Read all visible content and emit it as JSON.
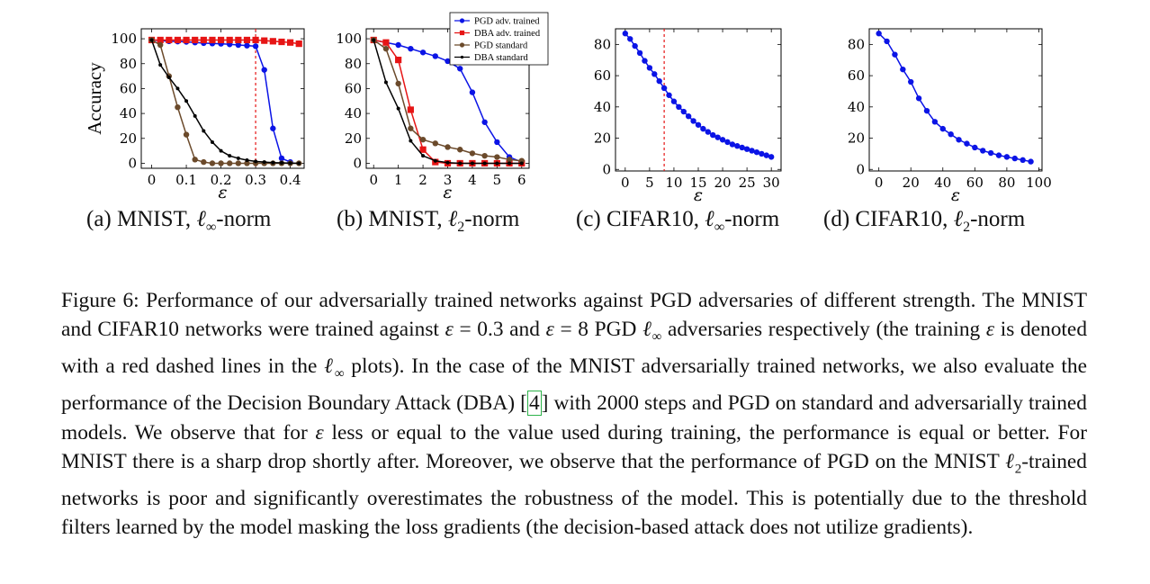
{
  "colors": {
    "pgd_adv": "#0b14e6",
    "dba_adv": "#e61515",
    "pgd_std": "#6b4a2b",
    "dba_std": "#000000",
    "train_line": "#e61515",
    "ref_box": "#2db34a"
  },
  "chart_data": [
    {
      "type": "line",
      "subcaption": {
        "prefix": "(a) MNIST, ",
        "math": "ℓ",
        "sub": "∞",
        "suffix": "-norm"
      },
      "ylabel": "Accuracy",
      "xlabel": "ε",
      "xlim": [
        -0.03,
        0.44
      ],
      "ylim": [
        -4,
        108
      ],
      "xticks": [
        0,
        0.1,
        0.2,
        0.3,
        0.4
      ],
      "xtick_labels": [
        "0",
        "0.1",
        "0.2",
        "0.3",
        "0.4"
      ],
      "yticks": [
        0,
        20,
        40,
        60,
        80,
        100
      ],
      "ytick_labels": [
        "0",
        "20",
        "40",
        "60",
        "80",
        "100"
      ],
      "train_eps": 0.3,
      "series": [
        {
          "key": "pgd_adv",
          "marker": "circle",
          "x": [
            0,
            0.025,
            0.05,
            0.075,
            0.1,
            0.125,
            0.15,
            0.175,
            0.2,
            0.225,
            0.25,
            0.275,
            0.3,
            0.325,
            0.35,
            0.375,
            0.4
          ],
          "y": [
            99,
            98.5,
            98,
            97.8,
            97.5,
            97,
            96.5,
            96.2,
            96,
            95.5,
            95,
            94.5,
            94,
            75,
            28,
            4,
            1
          ]
        },
        {
          "key": "dba_adv",
          "marker": "square",
          "x": [
            0,
            0.025,
            0.05,
            0.075,
            0.1,
            0.125,
            0.15,
            0.175,
            0.2,
            0.225,
            0.25,
            0.275,
            0.3,
            0.325,
            0.35,
            0.375,
            0.4,
            0.425
          ],
          "y": [
            99,
            99,
            99,
            99,
            99,
            99,
            99,
            99,
            99,
            99,
            99,
            99,
            99,
            98.5,
            98,
            97.5,
            97,
            96
          ]
        },
        {
          "key": "pgd_std",
          "marker": "circle",
          "x": [
            0,
            0.025,
            0.05,
            0.075,
            0.1,
            0.125,
            0.15,
            0.175,
            0.2,
            0.225,
            0.25,
            0.275,
            0.3,
            0.325,
            0.35,
            0.375,
            0.4,
            0.425
          ],
          "y": [
            99,
            95,
            70,
            45,
            23,
            3,
            1,
            0,
            0,
            0,
            0,
            0,
            0,
            0,
            0,
            0,
            0,
            0
          ]
        },
        {
          "key": "dba_std",
          "marker": "dot",
          "x": [
            0,
            0.025,
            0.05,
            0.075,
            0.1,
            0.125,
            0.15,
            0.175,
            0.2,
            0.225,
            0.25,
            0.275,
            0.3,
            0.325,
            0.35,
            0.375,
            0.4,
            0.425
          ],
          "y": [
            99,
            79,
            69,
            60,
            50,
            38,
            26,
            17,
            10,
            6,
            4,
            2.5,
            1.5,
            1,
            0.5,
            0.3,
            0.2,
            0
          ]
        }
      ]
    },
    {
      "type": "line",
      "subcaption": {
        "prefix": "(b) MNIST, ",
        "math": "ℓ",
        "sub": "2",
        "suffix": "-norm"
      },
      "xlabel": "ε",
      "xlim": [
        -0.3,
        6.3
      ],
      "ylim": [
        -4,
        108
      ],
      "xticks": [
        0,
        1,
        2,
        3,
        4,
        5,
        6
      ],
      "xtick_labels": [
        "0",
        "1",
        "2",
        "3",
        "4",
        "5",
        "6"
      ],
      "yticks": [
        0,
        20,
        40,
        60,
        80,
        100
      ],
      "ytick_labels": [
        "0",
        "20",
        "40",
        "60",
        "80",
        "100"
      ],
      "legend": {
        "position": "top-right",
        "entries": [
          {
            "key": "pgd_adv",
            "label": "PGD adv. trained",
            "marker": "circle"
          },
          {
            "key": "dba_adv",
            "label": "DBA adv. trained",
            "marker": "square"
          },
          {
            "key": "pgd_std",
            "label": "PGD standard",
            "marker": "circle"
          },
          {
            "key": "dba_std",
            "label": "DBA standard",
            "marker": "dot"
          }
        ]
      },
      "series": [
        {
          "key": "pgd_adv",
          "marker": "circle",
          "x": [
            0,
            0.5,
            1,
            1.5,
            2,
            2.5,
            3,
            3.5,
            4,
            4.5,
            5,
            5.5,
            6
          ],
          "y": [
            99,
            97,
            95,
            92,
            89,
            86,
            82,
            76,
            57,
            33,
            17,
            5,
            1
          ]
        },
        {
          "key": "dba_adv",
          "marker": "square",
          "x": [
            0,
            0.5,
            1,
            1.5,
            2,
            2.5,
            3,
            3.5,
            4,
            4.5,
            5,
            5.5,
            6
          ],
          "y": [
            99,
            97,
            83,
            43,
            11,
            1,
            0,
            0,
            0,
            0,
            0,
            0,
            0
          ]
        },
        {
          "key": "pgd_std",
          "marker": "circle",
          "x": [
            0,
            0.5,
            1,
            1.5,
            2,
            2.5,
            3,
            3.5,
            4,
            4.5,
            5,
            5.5,
            6
          ],
          "y": [
            99,
            92,
            64,
            28,
            19,
            16,
            13,
            11,
            8,
            6,
            5,
            3,
            2
          ]
        },
        {
          "key": "dba_std",
          "marker": "dot",
          "x": [
            0,
            0.5,
            1,
            1.5,
            2,
            2.5,
            3,
            3.5,
            4,
            4.5,
            5,
            5.5,
            6
          ],
          "y": [
            99,
            65,
            44,
            18,
            6,
            2,
            0.5,
            0,
            0,
            0,
            0,
            0,
            0
          ]
        }
      ]
    },
    {
      "type": "line",
      "subcaption": {
        "prefix": "(c) CIFAR10, ",
        "math": "ℓ",
        "sub": "∞",
        "suffix": "-norm"
      },
      "xlabel": "ε",
      "xlim": [
        -2,
        32
      ],
      "ylim": [
        -1,
        90
      ],
      "xticks": [
        0,
        5,
        10,
        15,
        20,
        25,
        30
      ],
      "xtick_labels": [
        "0",
        "5",
        "10",
        "15",
        "20",
        "25",
        "30"
      ],
      "yticks": [
        0,
        20,
        40,
        60,
        80
      ],
      "ytick_labels": [
        "0",
        "20",
        "40",
        "60",
        "80"
      ],
      "train_eps": 8,
      "series": [
        {
          "key": "pgd_adv",
          "marker": "circle",
          "x": [
            0,
            1,
            2,
            3,
            4,
            5,
            6,
            7,
            8,
            9,
            10,
            11,
            12,
            13,
            14,
            15,
            16,
            17,
            18,
            19,
            20,
            21,
            22,
            23,
            24,
            25,
            26,
            27,
            28,
            29,
            30
          ],
          "y": [
            87,
            83.5,
            79,
            74.5,
            69.5,
            65,
            61,
            56.5,
            52,
            47.5,
            43.5,
            40,
            37,
            34,
            31,
            28.5,
            26,
            24,
            22,
            20.5,
            19,
            17.5,
            16,
            15,
            14,
            13,
            12,
            11,
            10,
            9,
            8
          ]
        }
      ]
    },
    {
      "type": "line",
      "subcaption": {
        "prefix": "(d) CIFAR10, ",
        "math": "ℓ",
        "sub": "2",
        "suffix": "-norm"
      },
      "xlabel": "ε",
      "xlim": [
        -6,
        102
      ],
      "ylim": [
        -1,
        90
      ],
      "xticks": [
        0,
        20,
        40,
        60,
        80,
        100
      ],
      "xtick_labels": [
        "0",
        "20",
        "40",
        "60",
        "80",
        "100"
      ],
      "yticks": [
        0,
        20,
        40,
        60,
        80
      ],
      "ytick_labels": [
        "0",
        "20",
        "40",
        "60",
        "80"
      ],
      "series": [
        {
          "key": "pgd_adv",
          "marker": "circle",
          "x": [
            0,
            5,
            10,
            15,
            20,
            25,
            30,
            35,
            40,
            45,
            50,
            55,
            60,
            65,
            70,
            75,
            80,
            85,
            90,
            95
          ],
          "y": [
            87,
            82,
            73.5,
            64,
            56,
            45.5,
            37.5,
            30.5,
            26,
            22.5,
            19,
            16.5,
            14,
            12,
            10.5,
            9,
            8,
            7,
            6,
            5
          ]
        }
      ]
    }
  ],
  "caption": {
    "parts": [
      {
        "t": "Figure 6: Performance of our adversarially trained networks against PGD adversaries of different strength. The MNIST and CIFAR10 networks were trained against "
      },
      {
        "t": "ε",
        "i": true
      },
      {
        "t": " = 0.3 and "
      },
      {
        "t": "ε",
        "i": true
      },
      {
        "t": " = 8 PGD "
      },
      {
        "t": "ℓ",
        "i": true
      },
      {
        "t": "∞",
        "sub": true
      },
      {
        "t": " adversaries respectively (the training "
      },
      {
        "t": "ε",
        "i": true
      },
      {
        "t": " is denoted with a red dashed lines in the "
      },
      {
        "t": "ℓ",
        "i": true
      },
      {
        "t": "∞",
        "sub": true
      },
      {
        "t": " plots). In the case of the MNIST adversarially trained networks, we also evaluate the performance of the Decision Boundary Attack (DBA) ["
      },
      {
        "t": "4",
        "ref": true
      },
      {
        "t": "] with 2000 steps and PGD on standard and adversarially trained models. We observe that for "
      },
      {
        "t": "ε",
        "i": true
      },
      {
        "t": " less or equal to the value used during training, the performance is equal or better. For MNIST there is a sharp drop shortly after. Moreover, we observe that the performance of PGD on the MNIST "
      },
      {
        "t": "ℓ",
        "i": true
      },
      {
        "t": "2",
        "sub": true
      },
      {
        "t": "-trained networks is poor and significantly overestimates the robustness of the model. This is potentially due to the threshold filters learned by the model masking the loss gradients (the decision-based attack does not utilize gradients)."
      }
    ]
  }
}
